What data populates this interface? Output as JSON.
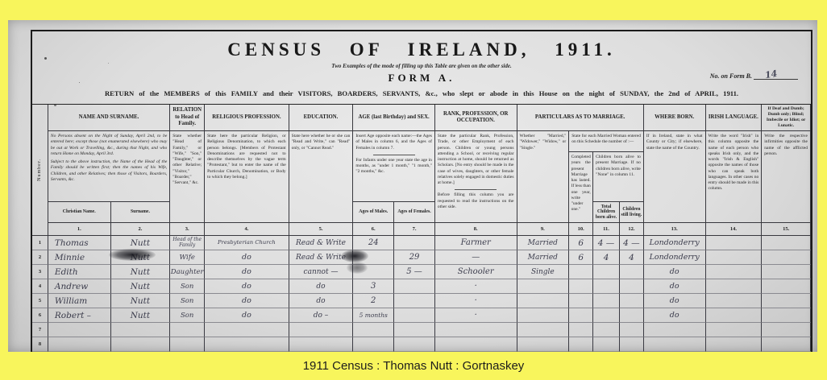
{
  "caption": "1911 Census : Thomas Nutt : Gortnaskey",
  "colors": {
    "frame": "#f8f55c",
    "paper": "#dcdcdc",
    "ink": "#262636"
  },
  "header": {
    "title": "CENSUS OF IRELAND, 1911.",
    "subtitle": "Two Examples of the mode of filling up this Table are given on the other side.",
    "form_label": "FORM A.",
    "form_b_label": "No. on Form B.",
    "form_b_value": "14",
    "return_line": "RETURN of the MEMBERS of this FAMILY and their VISITORS, BOARDERS, SERVANTS, &c., who slept or abode in this House on the night of SUNDAY, the 2nd of APRIL, 1911."
  },
  "table": {
    "number_col": "Number.",
    "cols": {
      "name": {
        "title": "NAME AND SURNAME.",
        "instr1": "No Persons absent on the Night of Sunday, April 2nd, to be entered here; except those (not enumerated elsewhere) who may be out at Work or Travelling, &c., during that Night, and who return Home on Monday, April 3rd.",
        "instr2": "Subject to the above instruction, the Name of the Head of the Family should be written first; then the names of his Wife, Children, and other Relatives; then those of Visitors, Boarders, Servants, &c.",
        "sub_christian": "Christian Name.",
        "sub_surname": "Surname.",
        "num_christian": "1.",
        "num_surname": "2."
      },
      "relation": {
        "title": "RELATION to Head of Family.",
        "instr": "State whether \"Head of Family,\" or \"Wife,\" \"Son,\" \"Daughter,\" or other Relative; \"Visitor,\" \"Boarder,\" \"Servant,\" &c.",
        "num": "3."
      },
      "religion": {
        "title": "RELIGIOUS PROFESSION.",
        "instr": "State here the particular Religion, or Religious Denomination, to which each person belongs. [Members of Protestant Denominations are requested not to describe themselves by the vague term \"Protestant,\" but to enter the name of the Particular Church, Denomination, or Body to which they belong.]",
        "num": "4."
      },
      "education": {
        "title": "EDUCATION.",
        "instr": "State here whether he or she can \"Read and Write,\" can \"Read\" only, or \"Cannot Read.\"",
        "num": "5."
      },
      "age": {
        "title": "AGE (last Birthday) and SEX.",
        "instr1": "Insert Age opposite each name:—the Ages of Males in column 6, and the Ages of Females in column 7.",
        "instr2": "For Infants under one year state the age in months, as \"under 1 month,\" \"1 month,\" \"2 months,\" &c.",
        "sub_males": "Ages of Males.",
        "sub_females": "Ages of Females.",
        "num_males": "6.",
        "num_females": "7."
      },
      "occupation": {
        "title": "RANK, PROFESSION, OR OCCUPATION.",
        "instr1": "State the particular Rank, Profession, Trade, or other Employment of each person. Children or young persons attending a School, or receiving regular instruction at home, should be returned as Scholars. [No entry should be made in the case of wives, daughters, or other female relatives solely engaged in domestic duties at home.]",
        "instr2": "Before filling this column you are requested to read the instructions on the other side.",
        "num": "8."
      },
      "marriage": {
        "title": "PARTICULARS AS TO MARRIAGE.",
        "whether": "Whether \"Married,\" \"Widower,\" \"Widow,\" or \"Single.\"",
        "woman_note": "State for each Married Woman entered on this Schedule the number of :—",
        "years": "Completed years the present Marriage has lasted. If less than one year, write \"under one.\"",
        "children_note": "Children born alive to present Marriage. If no children born alive, write \"None\" in column 11.",
        "total": "Total Children born alive.",
        "living": "Children still living.",
        "num_whether": "9.",
        "num_years": "10.",
        "num_total": "11.",
        "num_living": "12."
      },
      "born": {
        "title": "WHERE BORN.",
        "instr": "If in Ireland, state in what County or City; if elsewhere, state the name of the Country.",
        "num": "13."
      },
      "irish": {
        "title": "IRISH LANGUAGE.",
        "instr": "Write the word \"Irish\" in this column opposite the name of each person who speaks Irish only, and the words \"Irish & English\" opposite the names of those who can speak both languages. In other cases no entry should be made in this column.",
        "num": "14."
      },
      "infirmity": {
        "title": "If Deaf and Dumb; Dumb only; Blind; Imbecile or Idiot; or Lunatic.",
        "instr": "Write the respective infirmities opposite the name of the afflicted person.",
        "num": "15."
      }
    },
    "rows": [
      {
        "no": "1",
        "christian": "Thomas",
        "surname": "Nutt",
        "relation": "Head of the Family",
        "religion": "Presbyterian Church",
        "education": "Read & Write",
        "age_m": "24",
        "age_f": "",
        "occupation": "Farmer",
        "marriage": "Married",
        "years": "6",
        "total": "4 —",
        "living": "4 —",
        "born": "Londonderry",
        "irish": "",
        "infirmity": ""
      },
      {
        "no": "2",
        "christian": "Minnie",
        "surname": "Nutt",
        "relation": "Wife",
        "religion": "do",
        "education": "Read & Write",
        "age_m": "",
        "age_f": "29",
        "occupation": "—",
        "marriage": "Married",
        "years": "6",
        "total": "4",
        "living": "4",
        "born": "Londonderry",
        "irish": "",
        "infirmity": ""
      },
      {
        "no": "3",
        "christian": "Edith",
        "surname": "Nutt",
        "relation": "Daughter",
        "religion": "do",
        "education": "cannot —",
        "age_m": "",
        "age_f": "5 —",
        "occupation": "Schooler",
        "marriage": "Single",
        "years": "",
        "total": "",
        "living": "",
        "born": "do",
        "irish": "",
        "infirmity": ""
      },
      {
        "no": "4",
        "christian": "Andrew",
        "surname": "Nutt",
        "relation": "Son",
        "religion": "do",
        "education": "do",
        "age_m": "3",
        "age_f": "",
        "occupation": "·",
        "marriage": "",
        "years": "",
        "total": "",
        "living": "",
        "born": "do",
        "irish": "",
        "infirmity": ""
      },
      {
        "no": "5",
        "christian": "William",
        "surname": "Nutt",
        "relation": "Son",
        "religion": "do",
        "education": "do",
        "age_m": "2",
        "age_f": "",
        "occupation": "·",
        "marriage": "",
        "years": "",
        "total": "",
        "living": "",
        "born": "do",
        "irish": "",
        "infirmity": ""
      },
      {
        "no": "6",
        "christian": "Robert –",
        "surname": "Nutt",
        "relation": "Son",
        "religion": "do",
        "education": "do –",
        "age_m": "5 months",
        "age_f": "",
        "occupation": "·",
        "marriage": "",
        "years": "",
        "total": "",
        "living": "",
        "born": "do",
        "irish": "",
        "infirmity": ""
      },
      {
        "no": "7",
        "christian": "",
        "surname": "",
        "relation": "",
        "religion": "",
        "education": "",
        "age_m": "",
        "age_f": "",
        "occupation": "",
        "marriage": "",
        "years": "",
        "total": "",
        "living": "",
        "born": "",
        "irish": "",
        "infirmity": ""
      },
      {
        "no": "8",
        "christian": "",
        "surname": "",
        "relation": "",
        "religion": "",
        "education": "",
        "age_m": "",
        "age_f": "",
        "occupation": "",
        "marriage": "",
        "years": "",
        "total": "",
        "living": "",
        "born": "",
        "irish": "",
        "infirmity": ""
      }
    ]
  }
}
